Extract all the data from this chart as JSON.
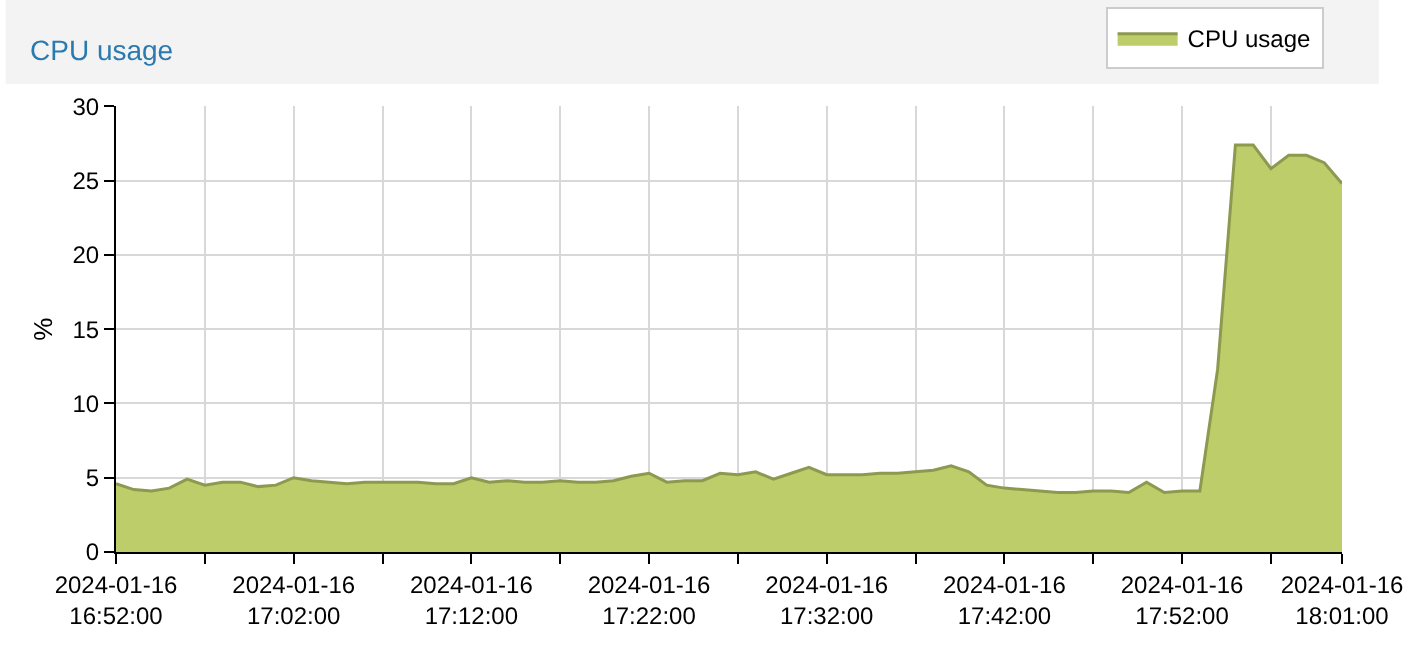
{
  "chart_data": {
    "type": "area",
    "title": "CPU usage",
    "ylabel": "%",
    "x": [
      "2024-01-16T16:52",
      "2024-01-16T16:53",
      "2024-01-16T16:54",
      "2024-01-16T16:55",
      "2024-01-16T16:56",
      "2024-01-16T16:57",
      "2024-01-16T16:58",
      "2024-01-16T16:59",
      "2024-01-16T17:00",
      "2024-01-16T17:01",
      "2024-01-16T17:02",
      "2024-01-16T17:03",
      "2024-01-16T17:04",
      "2024-01-16T17:05",
      "2024-01-16T17:06",
      "2024-01-16T17:07",
      "2024-01-16T17:08",
      "2024-01-16T17:09",
      "2024-01-16T17:10",
      "2024-01-16T17:11",
      "2024-01-16T17:12",
      "2024-01-16T17:13",
      "2024-01-16T17:14",
      "2024-01-16T17:15",
      "2024-01-16T17:16",
      "2024-01-16T17:17",
      "2024-01-16T17:18",
      "2024-01-16T17:19",
      "2024-01-16T17:20",
      "2024-01-16T17:21",
      "2024-01-16T17:22",
      "2024-01-16T17:23",
      "2024-01-16T17:24",
      "2024-01-16T17:25",
      "2024-01-16T17:26",
      "2024-01-16T17:27",
      "2024-01-16T17:28",
      "2024-01-16T17:29",
      "2024-01-16T17:30",
      "2024-01-16T17:31",
      "2024-01-16T17:32",
      "2024-01-16T17:33",
      "2024-01-16T17:34",
      "2024-01-16T17:35",
      "2024-01-16T17:36",
      "2024-01-16T17:37",
      "2024-01-16T17:38",
      "2024-01-16T17:39",
      "2024-01-16T17:40",
      "2024-01-16T17:41",
      "2024-01-16T17:42",
      "2024-01-16T17:43",
      "2024-01-16T17:44",
      "2024-01-16T17:45",
      "2024-01-16T17:46",
      "2024-01-16T17:47",
      "2024-01-16T17:48",
      "2024-01-16T17:49",
      "2024-01-16T17:50",
      "2024-01-16T17:51",
      "2024-01-16T17:52",
      "2024-01-16T17:53",
      "2024-01-16T17:54",
      "2024-01-16T17:55",
      "2024-01-16T17:56",
      "2024-01-16T17:57",
      "2024-01-16T17:58",
      "2024-01-16T17:59",
      "2024-01-16T18:00",
      "2024-01-16T18:01"
    ],
    "series": [
      {
        "name": "CPU usage",
        "color": "#bccd6a",
        "values": [
          4.6,
          4.2,
          4.1,
          4.3,
          4.9,
          4.5,
          4.7,
          4.7,
          4.4,
          4.5,
          5.0,
          4.8,
          4.7,
          4.6,
          4.7,
          4.7,
          4.7,
          4.7,
          4.6,
          4.6,
          5.0,
          4.7,
          4.8,
          4.7,
          4.7,
          4.8,
          4.7,
          4.7,
          4.8,
          5.1,
          5.3,
          4.7,
          4.8,
          4.8,
          5.3,
          5.2,
          5.4,
          4.9,
          5.3,
          5.7,
          5.2,
          5.2,
          5.2,
          5.3,
          5.3,
          5.4,
          5.5,
          5.8,
          5.4,
          4.5,
          4.3,
          4.2,
          4.1,
          4.0,
          4.0,
          4.1,
          4.1,
          4.0,
          4.7,
          4.0,
          4.1,
          4.1,
          12.3,
          27.4,
          27.4,
          25.8,
          26.7,
          26.7,
          26.2,
          24.8
        ]
      }
    ],
    "xlim": [
      "2024-01-16T16:52",
      "2024-01-16T18:01"
    ],
    "xticks": [
      {
        "value": "2024-01-16T16:52",
        "label": "2024-01-16 16:52:00"
      },
      {
        "value": "2024-01-16T16:57",
        "label": null
      },
      {
        "value": "2024-01-16T17:02",
        "label": "2024-01-16 17:02:00"
      },
      {
        "value": "2024-01-16T17:07",
        "label": null
      },
      {
        "value": "2024-01-16T17:12",
        "label": "2024-01-16 17:12:00"
      },
      {
        "value": "2024-01-16T17:17",
        "label": null
      },
      {
        "value": "2024-01-16T17:22",
        "label": "2024-01-16 17:22:00"
      },
      {
        "value": "2024-01-16T17:27",
        "label": null
      },
      {
        "value": "2024-01-16T17:32",
        "label": "2024-01-16 17:32:00"
      },
      {
        "value": "2024-01-16T17:37",
        "label": null
      },
      {
        "value": "2024-01-16T17:42",
        "label": "2024-01-16 17:42:00"
      },
      {
        "value": "2024-01-16T17:47",
        "label": null
      },
      {
        "value": "2024-01-16T17:52",
        "label": "2024-01-16 17:52:00"
      },
      {
        "value": "2024-01-16T17:57",
        "label": null
      },
      {
        "value": "2024-01-16T18:01",
        "label": "2024-01-16 18:01:00"
      }
    ],
    "ylim": [
      0,
      30
    ],
    "yticks": [
      0,
      5,
      10,
      15,
      20,
      25,
      30
    ],
    "grid": true,
    "legend": "top right",
    "marker": "none",
    "line_style": "solid"
  }
}
